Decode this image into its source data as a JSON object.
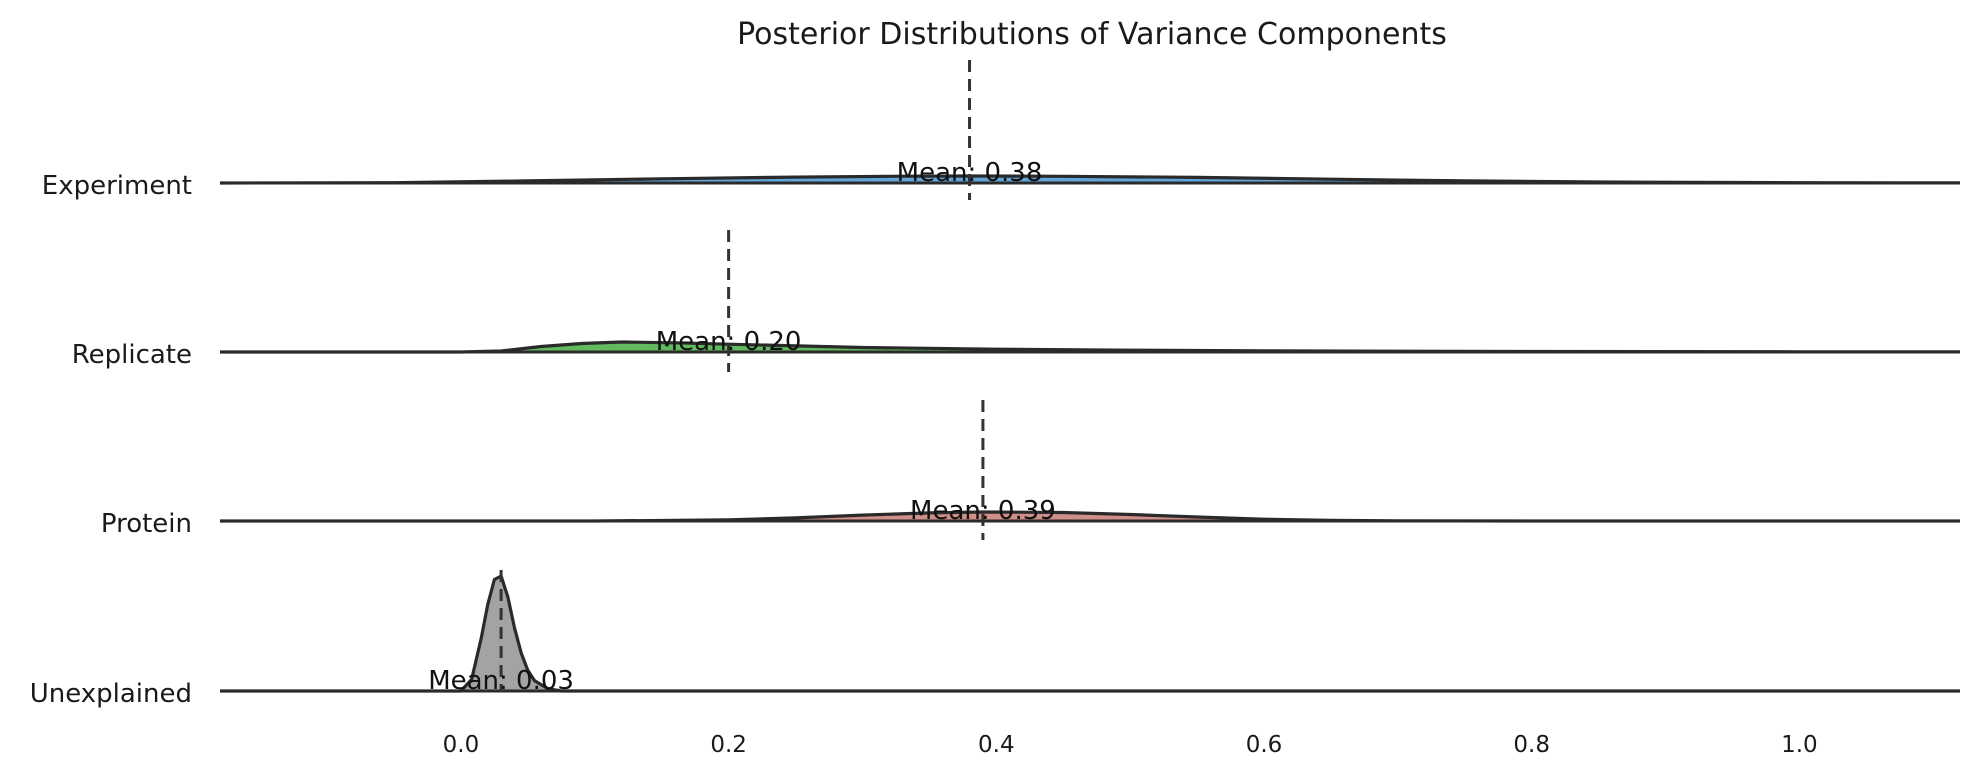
{
  "chart_data": {
    "type": "area",
    "title": "Posterior Distributions of Variance Components",
    "xlabel": "",
    "ylabel": "",
    "xlim": [
      -0.18,
      1.12
    ],
    "grid": false,
    "legend": "none",
    "x_ticks": [
      "0.0",
      "0.2",
      "0.4",
      "0.6",
      "0.8",
      "1.0"
    ],
    "x_tick_values": [
      0.0,
      0.2,
      0.4,
      0.6,
      0.8,
      1.0
    ],
    "series": [
      {
        "name": "Experiment",
        "color": "#3b8fd0",
        "mean": 0.38,
        "mean_label": "Mean: 0.38",
        "density": {
          "x": [
            -0.18,
            -0.05,
            0.05,
            0.15,
            0.25,
            0.33,
            0.38,
            0.45,
            0.55,
            0.65,
            0.75,
            0.85,
            1.0,
            1.12
          ],
          "y": [
            0.0,
            0.05,
            0.3,
            0.6,
            0.85,
            0.97,
            1.0,
            0.96,
            0.8,
            0.55,
            0.3,
            0.14,
            0.05,
            0.02
          ]
        }
      },
      {
        "name": "Replicate",
        "color": "#3aa935",
        "mean": 0.2,
        "mean_label": "Mean: 0.20",
        "density": {
          "x": [
            -0.18,
            0.0,
            0.03,
            0.06,
            0.09,
            0.12,
            0.16,
            0.2,
            0.3,
            0.4,
            0.5,
            0.6,
            0.7,
            0.8,
            1.0,
            1.12
          ],
          "y": [
            0.0,
            0.0,
            0.1,
            0.55,
            0.85,
            1.0,
            0.92,
            0.78,
            0.45,
            0.28,
            0.18,
            0.12,
            0.08,
            0.05,
            0.02,
            0.01
          ]
        }
      },
      {
        "name": "Protein",
        "color": "#c4736a",
        "mean": 0.39,
        "mean_label": "Mean: 0.39",
        "density": {
          "x": [
            -0.18,
            0.1,
            0.2,
            0.25,
            0.3,
            0.35,
            0.39,
            0.45,
            0.5,
            0.55,
            0.6,
            0.65,
            0.7,
            0.8,
            1.12
          ],
          "y": [
            0.0,
            0.0,
            0.12,
            0.35,
            0.65,
            0.9,
            1.0,
            0.95,
            0.72,
            0.45,
            0.2,
            0.08,
            0.02,
            0.0,
            0.0
          ]
        }
      },
      {
        "name": "Unexplained",
        "color": "#8c8c8c",
        "mean": 0.03,
        "mean_label": "Mean: 0.03",
        "density": {
          "x": [
            -0.18,
            0.0,
            0.008,
            0.015,
            0.02,
            0.025,
            0.03,
            0.035,
            0.04,
            0.045,
            0.05,
            0.055,
            0.065,
            0.075,
            1.12
          ],
          "y": [
            0.0,
            0.0,
            0.1,
            0.45,
            0.75,
            0.97,
            1.0,
            0.82,
            0.55,
            0.33,
            0.18,
            0.09,
            0.02,
            0.0,
            0.0
          ]
        }
      }
    ]
  }
}
